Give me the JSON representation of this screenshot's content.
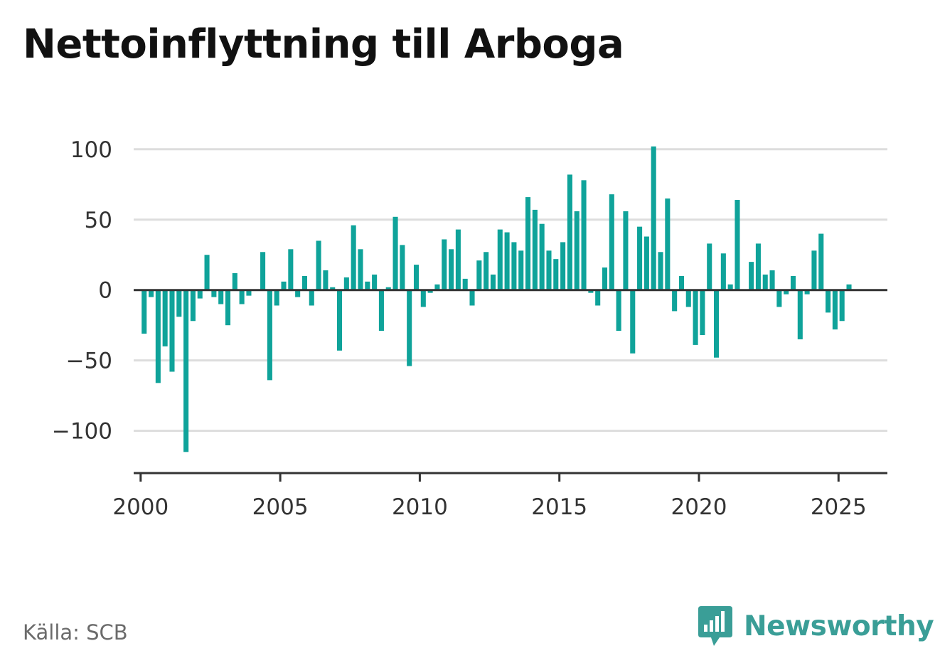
{
  "title": "Nettoinflyttning till Arboga",
  "source": "Källa: SCB",
  "brand": {
    "name": "Newsworthy",
    "icon": "newsworthy-logo-icon"
  },
  "colors": {
    "bar": "#0fa39a",
    "grid": "#dddddd",
    "axis": "#333333",
    "brand": "#3a9e97"
  },
  "chart_data": {
    "type": "bar",
    "x_unit": "quarter",
    "xlim": [
      1999.75,
      2026.75
    ],
    "ylim": [
      -130,
      110
    ],
    "grid": true,
    "x_ticks": [
      2000,
      2005,
      2010,
      2015,
      2020,
      2025
    ],
    "x_tick_labels": [
      "2000",
      "2005",
      "2010",
      "2015",
      "2020",
      "2025"
    ],
    "y_ticks": [
      100,
      50,
      0,
      -50,
      -100
    ],
    "y_tick_labels": [
      "100",
      "50",
      "0",
      "−50",
      "−100"
    ],
    "start": "2000 Q1",
    "values": [
      -31,
      -5,
      -66,
      -40,
      -58,
      -19,
      -115,
      -22,
      -6,
      25,
      -5,
      -10,
      -25,
      12,
      -10,
      -4,
      0,
      27,
      -64,
      -11,
      6,
      29,
      -5,
      10,
      -11,
      35,
      14,
      2,
      -43,
      9,
      46,
      29,
      6,
      11,
      -29,
      2,
      52,
      32,
      -54,
      18,
      -12,
      -2,
      4,
      36,
      29,
      43,
      8,
      -11,
      21,
      27,
      11,
      43,
      41,
      34,
      28,
      66,
      57,
      47,
      28,
      22,
      34,
      82,
      56,
      78,
      -2,
      -11,
      16,
      68,
      -29,
      56,
      -45,
      45,
      38,
      102,
      27,
      65,
      -15,
      10,
      -12,
      -39,
      -32,
      33,
      -48,
      26,
      4,
      64,
      0,
      20,
      33,
      11,
      14,
      -12,
      -3,
      10,
      -35,
      -3,
      28,
      40,
      -16,
      -28,
      -22,
      4
    ]
  }
}
